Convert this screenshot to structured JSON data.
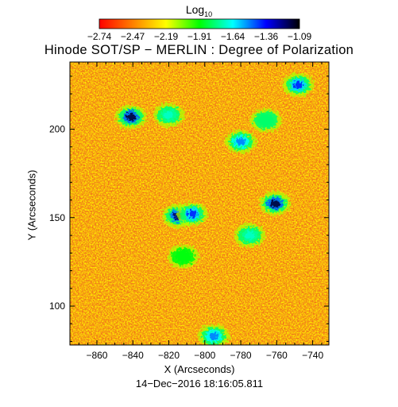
{
  "colorbar": {
    "label_base": "Log",
    "label_sub": "10",
    "tick_labels": [
      "−2.74",
      "−2.47",
      "−2.19",
      "−1.91",
      "−1.64",
      "−1.36",
      "−1.09"
    ],
    "range": [
      -2.74,
      -1.09
    ],
    "colormap": [
      "#ff0000",
      "#ff7f00",
      "#ffff00",
      "#00ff00",
      "#00ffff",
      "#0000ff",
      "#000000"
    ]
  },
  "chart_data": {
    "type": "heatmap",
    "title": "Hinode SOT/SP − MERLIN : Degree of Polarization",
    "xlabel": "X (Arcseconds)",
    "ylabel": "Y (Arcseconds)",
    "xlim": [
      -875,
      -731
    ],
    "ylim": [
      78,
      238
    ],
    "x_ticks": [
      -860,
      -840,
      -820,
      -800,
      -780,
      -760,
      -740
    ],
    "x_tick_labels": [
      "−860",
      "−840",
      "−820",
      "−800",
      "−780",
      "−760",
      "−740"
    ],
    "y_ticks": [
      100,
      150,
      200
    ],
    "y_tick_labels": [
      "100",
      "150",
      "200"
    ],
    "value_scale": "log10",
    "value_range": [
      -2.74,
      -1.09
    ],
    "background_color": "#f07a1c",
    "high_polarization_regions": [
      {
        "x": -841,
        "y": 207,
        "peak": -1.15
      },
      {
        "x": -820,
        "y": 208,
        "peak": -1.7
      },
      {
        "x": -815,
        "y": 151,
        "peak": -1.2
      },
      {
        "x": -807,
        "y": 152,
        "peak": -1.4
      },
      {
        "x": -780,
        "y": 193,
        "peak": -1.5
      },
      {
        "x": -761,
        "y": 158,
        "peak": -1.15
      },
      {
        "x": -775,
        "y": 140,
        "peak": -1.7
      },
      {
        "x": -748,
        "y": 225,
        "peak": -1.4
      },
      {
        "x": -766,
        "y": 205,
        "peak": -1.8
      },
      {
        "x": -795,
        "y": 83,
        "peak": -1.5
      },
      {
        "x": -812,
        "y": 128,
        "peak": -1.9
      }
    ],
    "grid": false
  },
  "footer": {
    "timestamp": "14−Dec−2016 18:16:05.811"
  }
}
